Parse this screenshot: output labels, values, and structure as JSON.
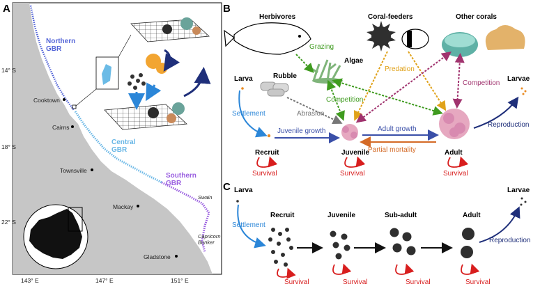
{
  "panels": {
    "a": "A",
    "b": "B",
    "c": "C"
  },
  "map": {
    "regions": {
      "northern": "Northern\nGBR",
      "central": "Central\nGBR",
      "southern": "Southern\nGBR"
    },
    "places": {
      "cooktown": "Cooktown",
      "cairns": "Cairns",
      "townsville": "Townsville",
      "mackay": "Mackay",
      "gladstone": "Gladstone",
      "swain": "Swain",
      "capricorn": "Capricorn\nBunker"
    },
    "lat_ticks": [
      "14° S",
      "18° S",
      "22° S"
    ],
    "lon_ticks": [
      "143° E",
      "147° E",
      "151° E"
    ]
  },
  "b": {
    "top_labels": {
      "herbivores": "Herbivores",
      "coral_feeders": "Coral-feeders",
      "other_corals": "Other corals"
    },
    "nodes": {
      "rubble": "Rubble",
      "algae": "Algae",
      "larva": "Larva",
      "recruit": "Recruit",
      "juvenile": "Juvenile",
      "adult": "Adult",
      "larvae": "Larvae"
    },
    "arrows": {
      "grazing": "Grazing",
      "predation": "Predation",
      "competition_algae": "Competition",
      "competition_corals": "Competition",
      "abrasion": "Abrasion",
      "settlement": "Settlement",
      "juvenile_growth": "Juvenile growth",
      "adult_growth": "Adult growth",
      "partial_mortality": "Partial mortality",
      "reproduction": "Reproduction"
    },
    "survival": "Survival"
  },
  "c": {
    "stages": {
      "larva": "Larva",
      "recruit": "Recruit",
      "juvenile": "Juvenile",
      "subadult": "Sub-adult",
      "adult": "Adult",
      "larvae": "Larvae"
    },
    "settlement": "Settlement",
    "reproduction": "Reproduction",
    "survival": "Survival"
  },
  "colors": {
    "growth": "#3a4fa8",
    "settlement": "#2b86d8",
    "survival": "#d81e1e",
    "grazing": "#3f9b1f",
    "predation": "#e0a21a",
    "competition": "#a0336e",
    "mortality": "#d46a26",
    "reproduction": "#1f2f7a",
    "northern": "#5566d8",
    "central": "#69b7e6",
    "southern": "#9a5fe0"
  }
}
